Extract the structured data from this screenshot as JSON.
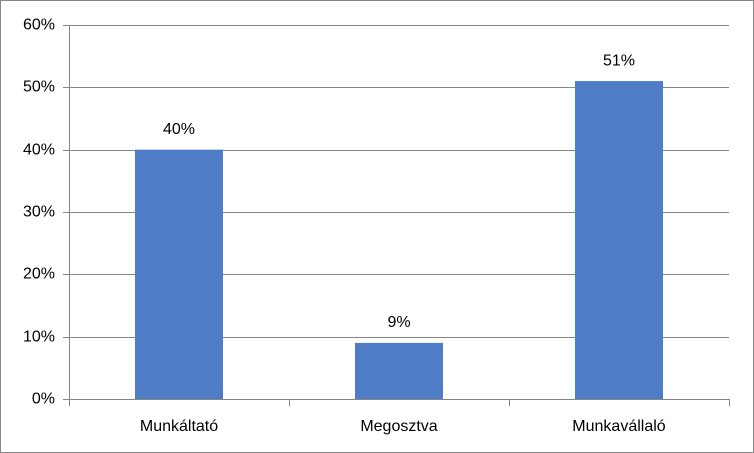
{
  "chart_data": {
    "type": "bar",
    "categories": [
      "Munkáltató",
      "Megosztva",
      "Munkavállaló"
    ],
    "values": [
      40,
      9,
      51
    ],
    "value_labels": [
      "40%",
      "9%",
      "51%"
    ],
    "color": "#4f7cc6",
    "ylim": [
      0,
      60
    ],
    "yticks": [
      {
        "value": 0,
        "label": "0%"
      },
      {
        "value": 10,
        "label": "10%"
      },
      {
        "value": 20,
        "label": "20%"
      },
      {
        "value": 30,
        "label": "30%"
      },
      {
        "value": 40,
        "label": "40%"
      },
      {
        "value": 50,
        "label": "50%"
      },
      {
        "value": 60,
        "label": "60%"
      }
    ],
    "grid": true
  }
}
